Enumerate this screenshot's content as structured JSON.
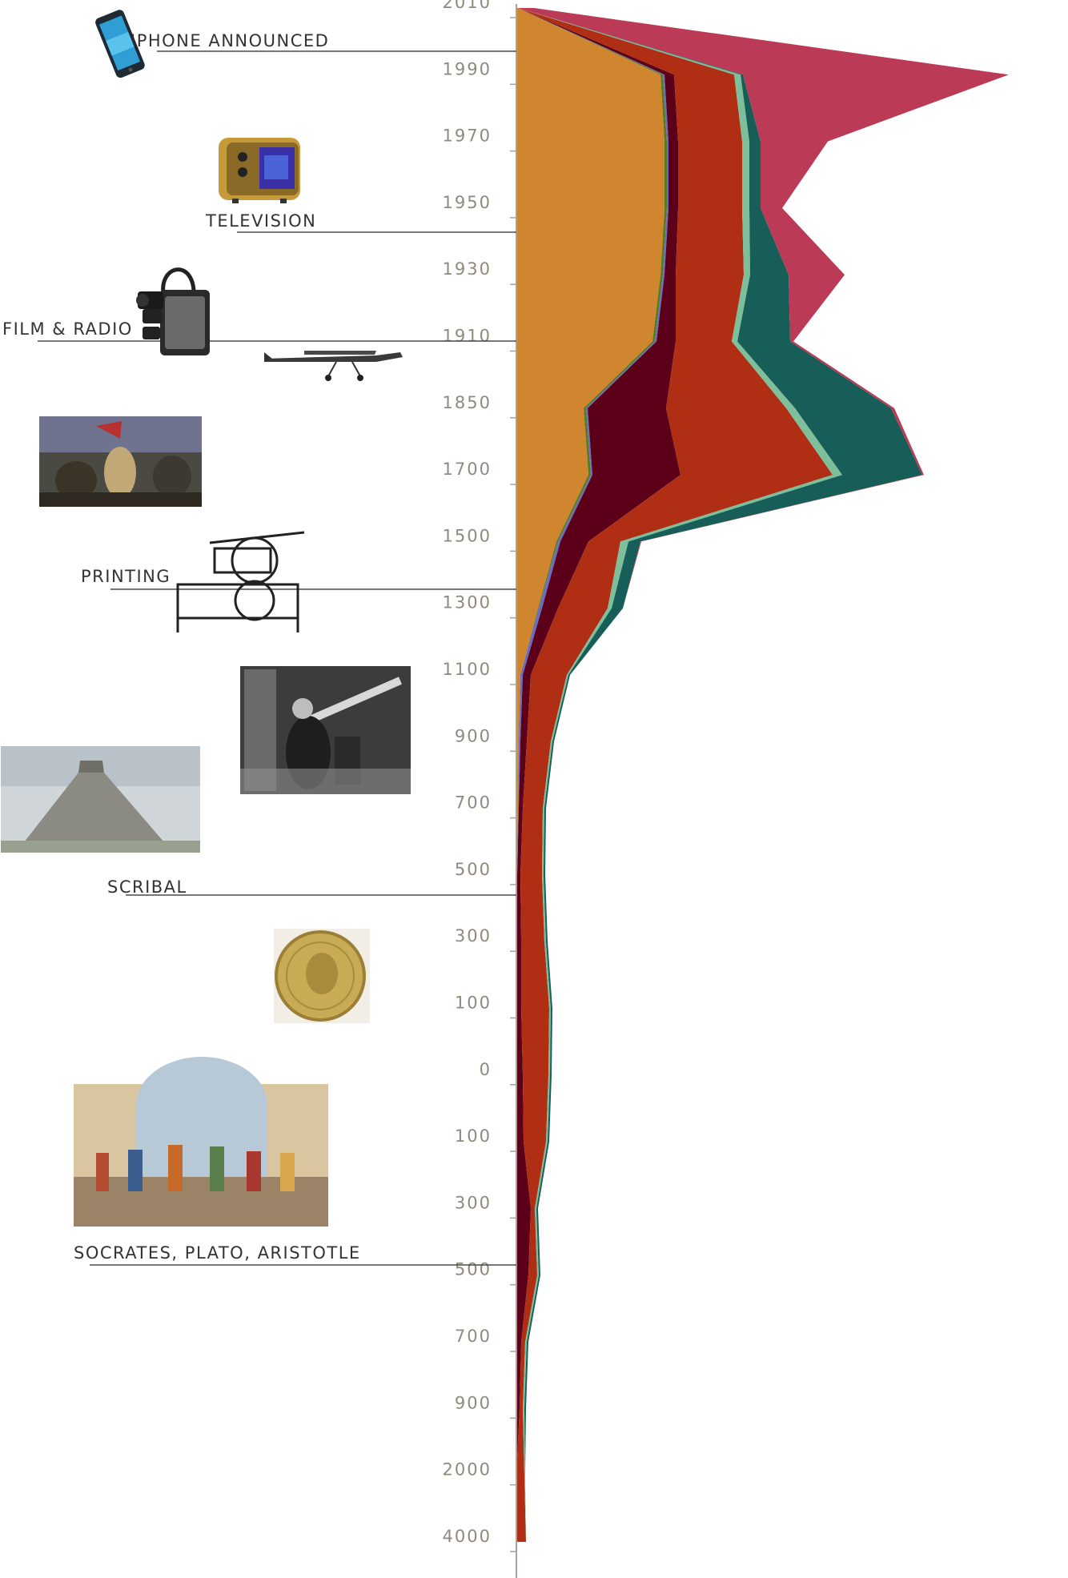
{
  "chart_data": {
    "type": "area",
    "orientation": "vertical-time-axis",
    "ticks": [
      "2010",
      "1990",
      "1970",
      "1950",
      "1930",
      "1910",
      "1850",
      "1700",
      "1500",
      "1300",
      "1100",
      "900",
      "700",
      "500",
      "300",
      "100",
      "0",
      "100",
      "300",
      "500",
      "700",
      "900",
      "2000",
      "4000"
    ],
    "events": [
      {
        "label": "IPHONE ANNOUNCED",
        "icon": "smartphone-icon"
      },
      {
        "label": "TELEVISION",
        "icon": "television-icon"
      },
      {
        "label": "FILM & RADIO",
        "icon": "film-camera-icon"
      },
      {
        "label": "PRINTING",
        "icon": "printing-press-icon"
      },
      {
        "label": "SCRIBAL",
        "icon": null
      },
      {
        "label": "SOCRATES, PLATO, ARISTOTLE",
        "icon": null
      }
    ],
    "illustrations": [
      "smartphone-icon",
      "television-icon",
      "film-camera-icon",
      "airplane-icon",
      "liberty-painting-icon",
      "printing-press-icon",
      "telescope-photo-icon",
      "pyramid-photo-icon",
      "roman-coin-icon",
      "school-of-athens-icon"
    ],
    "series": [
      {
        "color": "#d0862e",
        "values": [
          2,
          180,
          185,
          185,
          180,
          170,
          84,
          90,
          50,
          27,
          5,
          3,
          2,
          1,
          1,
          1,
          1,
          1,
          1,
          1,
          1,
          1,
          0,
          0
        ]
      },
      {
        "color": "#5a7a1f",
        "values": [
          0,
          3,
          3,
          3,
          3,
          3,
          3,
          3,
          2,
          1,
          0,
          0,
          0,
          0,
          0,
          0,
          0,
          0,
          0,
          0,
          0,
          0,
          0,
          0
        ]
      },
      {
        "color": "#6b6bc4",
        "values": [
          0,
          2,
          2,
          2,
          2,
          2,
          2,
          2,
          3,
          4,
          3,
          2,
          1,
          0,
          0,
          0,
          0,
          0,
          0,
          0,
          0,
          0,
          0,
          0
        ]
      },
      {
        "color": "#5b0018",
        "values": [
          0,
          12,
          12,
          12,
          14,
          24,
          98,
          110,
          35,
          20,
          10,
          8,
          5,
          4,
          5,
          5,
          7,
          8,
          17,
          14,
          5,
          3,
          0,
          0
        ]
      },
      {
        "color": "#b02f14",
        "values": [
          0,
          75,
          80,
          80,
          85,
          70,
          150,
          190,
          40,
          62,
          45,
          30,
          25,
          27,
          29,
          35,
          32,
          28,
          5,
          11,
          5,
          4,
          10,
          12
        ]
      },
      {
        "color": "#7dbf9a",
        "values": [
          0,
          8,
          9,
          9,
          8,
          7,
          11,
          12,
          10,
          5,
          2,
          2,
          2,
          2,
          2,
          2,
          2,
          2,
          2,
          2,
          2,
          2,
          1,
          0
        ]
      },
      {
        "color": "#175e58",
        "values": [
          0,
          3,
          14,
          14,
          48,
          66,
          120,
          100,
          15,
          14,
          2,
          2,
          2,
          2,
          2,
          2,
          2,
          2,
          2,
          2,
          2,
          2,
          0,
          0
        ]
      },
      {
        "color": "#bb3a55",
        "values": [
          20,
          332,
          84,
          27,
          70,
          4,
          4,
          2,
          1,
          0,
          0,
          0,
          0,
          0,
          0,
          0,
          0,
          0,
          0,
          0,
          0,
          0,
          0,
          0
        ]
      }
    ]
  }
}
